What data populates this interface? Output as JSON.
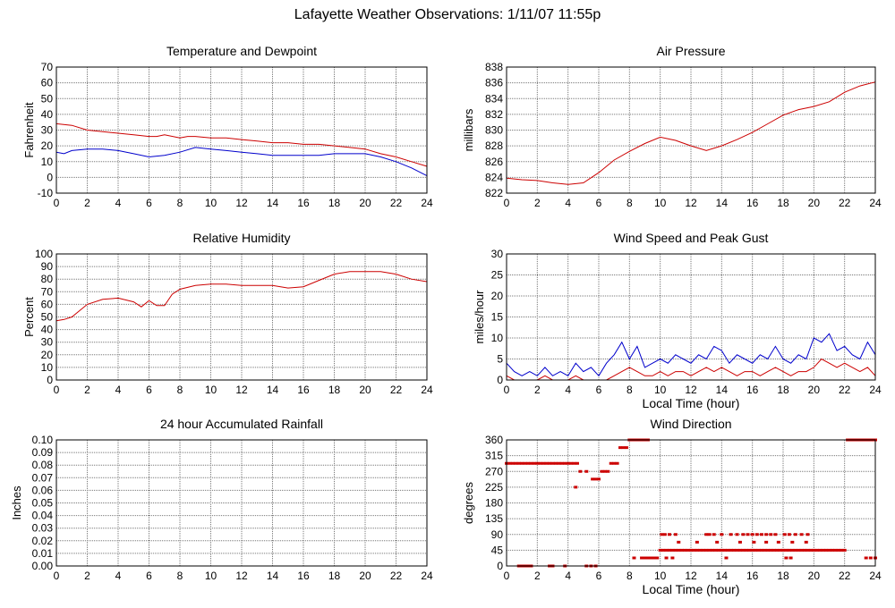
{
  "page": {
    "title": "Lafayette Weather Observations: 1/11/07 11:55p",
    "colors": {
      "red": "#cc0000",
      "blue": "#0000cc",
      "grid": "#777777",
      "frame": "#000000"
    }
  },
  "chart_data": [
    {
      "id": "temperature",
      "type": "line",
      "title": "Temperature and Dewpoint",
      "xlabel": "",
      "ylabel": "Fahrenheit",
      "xlim": [
        0,
        24
      ],
      "ylim": [
        -10,
        70
      ],
      "xticks": [
        "0",
        "2",
        "4",
        "6",
        "8",
        "10",
        "12",
        "14",
        "16",
        "18",
        "20",
        "22",
        "24"
      ],
      "yticks": [
        "-10",
        "0",
        "10",
        "20",
        "30",
        "40",
        "50",
        "60",
        "70"
      ],
      "series": [
        {
          "name": "Temperature",
          "color": "#cc0000",
          "x": [
            0,
            1,
            2,
            3,
            4,
            5,
            6,
            6.5,
            7,
            8,
            8.5,
            9,
            10,
            11,
            12,
            13,
            14,
            15,
            16,
            17,
            18,
            19,
            20,
            21,
            22,
            23,
            24
          ],
          "y": [
            34,
            33,
            30,
            29,
            28,
            27,
            26,
            26,
            27,
            25,
            26,
            26,
            25,
            25,
            24,
            23,
            22,
            22,
            21,
            21,
            20,
            19,
            18,
            15,
            13,
            10,
            7
          ]
        },
        {
          "name": "Dewpoint",
          "color": "#0000cc",
          "x": [
            0,
            0.5,
            1,
            2,
            3,
            4,
            5,
            6,
            7,
            8,
            9,
            10,
            11,
            12,
            13,
            14,
            15,
            16,
            17,
            18,
            19,
            20,
            21,
            22,
            23,
            24
          ],
          "y": [
            16,
            15,
            17,
            18,
            18,
            17,
            15,
            13,
            14,
            16,
            19,
            18,
            17,
            16,
            15,
            14,
            14,
            14,
            14,
            15,
            15,
            15,
            13,
            10,
            6,
            1
          ]
        }
      ]
    },
    {
      "id": "pressure",
      "type": "line",
      "title": "Air Pressure",
      "xlabel": "",
      "ylabel": "millibars",
      "xlim": [
        0,
        24
      ],
      "ylim": [
        822,
        838
      ],
      "xticks": [
        "0",
        "2",
        "4",
        "6",
        "8",
        "10",
        "12",
        "14",
        "16",
        "18",
        "20",
        "22",
        "24"
      ],
      "yticks": [
        "822",
        "824",
        "826",
        "828",
        "830",
        "832",
        "834",
        "836",
        "838"
      ],
      "series": [
        {
          "name": "Pressure",
          "color": "#cc0000",
          "x": [
            0,
            1,
            2,
            3,
            4,
            5,
            6,
            7,
            8,
            9,
            10,
            11,
            12,
            13,
            14,
            15,
            16,
            17,
            18,
            19,
            20,
            21,
            22,
            23,
            24
          ],
          "y": [
            823.9,
            823.7,
            823.6,
            823.3,
            823.1,
            823.3,
            824.6,
            826.2,
            827.3,
            828.3,
            829.1,
            828.7,
            828.0,
            827.4,
            828.0,
            828.8,
            829.7,
            830.8,
            831.9,
            832.6,
            833.0,
            833.6,
            834.8,
            835.6,
            836.1
          ]
        }
      ]
    },
    {
      "id": "humidity",
      "type": "line",
      "title": "Relative Humidity",
      "xlabel": "",
      "ylabel": "Percent",
      "xlim": [
        0,
        24
      ],
      "ylim": [
        0,
        100
      ],
      "xticks": [
        "0",
        "2",
        "4",
        "6",
        "8",
        "10",
        "12",
        "14",
        "16",
        "18",
        "20",
        "22",
        "24"
      ],
      "yticks": [
        "0",
        "10",
        "20",
        "30",
        "40",
        "50",
        "60",
        "70",
        "80",
        "90",
        "100"
      ],
      "series": [
        {
          "name": "Relative Humidity",
          "color": "#cc0000",
          "x": [
            0,
            0.5,
            1,
            2,
            3,
            4,
            5,
            5.5,
            6,
            6.5,
            7,
            7.5,
            8,
            9,
            10,
            11,
            12,
            13,
            14,
            15,
            16,
            17,
            18,
            19,
            20,
            21,
            22,
            23,
            24
          ],
          "y": [
            47,
            48,
            50,
            60,
            64,
            65,
            62,
            58,
            63,
            59,
            59,
            68,
            72,
            75,
            76,
            76,
            75,
            75,
            75,
            73,
            74,
            79,
            84,
            86,
            86,
            86,
            84,
            80,
            78
          ]
        }
      ]
    },
    {
      "id": "wind",
      "type": "line",
      "title": "Wind Speed and Peak Gust",
      "xlabel": "Local Time (hour)",
      "ylabel": "miles/hour",
      "xlim": [
        0,
        24
      ],
      "ylim": [
        0,
        30
      ],
      "xticks": [
        "0",
        "2",
        "4",
        "6",
        "8",
        "10",
        "12",
        "14",
        "16",
        "18",
        "20",
        "22",
        "24"
      ],
      "yticks": [
        "0",
        "5",
        "10",
        "15",
        "20",
        "25",
        "30"
      ],
      "series": [
        {
          "name": "Peak Gust",
          "color": "#0000cc",
          "x": [
            0,
            0.5,
            1,
            1.5,
            2,
            2.5,
            3,
            3.5,
            4,
            4.5,
            5,
            5.5,
            6,
            6.5,
            7,
            7.5,
            8,
            8.5,
            9,
            9.5,
            10,
            10.5,
            11,
            11.5,
            12,
            12.5,
            13,
            13.5,
            14,
            14.5,
            15,
            15.5,
            16,
            16.5,
            17,
            17.5,
            18,
            18.5,
            19,
            19.5,
            20,
            20.5,
            21,
            21.5,
            22,
            22.5,
            23,
            23.5,
            24
          ],
          "y": [
            4,
            2,
            1,
            2,
            1,
            3,
            1,
            2,
            1,
            4,
            2,
            3,
            1,
            4,
            6,
            9,
            5,
            8,
            3,
            4,
            5,
            4,
            6,
            5,
            4,
            6,
            5,
            8,
            7,
            4,
            6,
            5,
            4,
            6,
            5,
            8,
            5,
            4,
            6,
            5,
            10,
            9,
            11,
            7,
            8,
            6,
            5,
            9,
            6
          ]
        },
        {
          "name": "Wind Speed",
          "color": "#cc0000",
          "x": [
            0,
            0.5,
            1,
            1.5,
            2,
            2.5,
            3,
            3.5,
            4,
            4.5,
            5,
            5.5,
            6,
            6.5,
            7,
            7.5,
            8,
            8.5,
            9,
            9.5,
            10,
            10.5,
            11,
            11.5,
            12,
            12.5,
            13,
            13.5,
            14,
            14.5,
            15,
            15.5,
            16,
            16.5,
            17,
            17.5,
            18,
            18.5,
            19,
            19.5,
            20,
            20.5,
            21,
            21.5,
            22,
            22.5,
            23,
            23.5,
            24
          ],
          "y": [
            1,
            0,
            0,
            0,
            0,
            1,
            0,
            0,
            0,
            1,
            0,
            0,
            0,
            0,
            1,
            2,
            3,
            2,
            1,
            1,
            2,
            1,
            2,
            2,
            1,
            2,
            3,
            2,
            3,
            2,
            1,
            2,
            2,
            1,
            2,
            3,
            2,
            1,
            2,
            2,
            3,
            5,
            4,
            3,
            4,
            3,
            2,
            3,
            1
          ]
        }
      ]
    },
    {
      "id": "rainfall",
      "type": "line",
      "title": "24 hour Accumulated Rainfall",
      "xlabel": "",
      "ylabel": "Inches",
      "xlim": [
        0,
        24
      ],
      "ylim": [
        0,
        0.1
      ],
      "xticks": [
        "0",
        "2",
        "4",
        "6",
        "8",
        "10",
        "12",
        "14",
        "16",
        "18",
        "20",
        "22",
        "24"
      ],
      "yticks": [
        "0.00",
        "0.01",
        "0.02",
        "0.03",
        "0.04",
        "0.05",
        "0.06",
        "0.07",
        "0.08",
        "0.09",
        "0.10"
      ],
      "series": [
        {
          "name": "Rainfall",
          "color": "#cc0000",
          "x": [
            0,
            24
          ],
          "y": [
            0,
            0
          ]
        }
      ]
    },
    {
      "id": "direction",
      "type": "scatter",
      "title": "Wind Direction",
      "xlabel": "Local Time (hour)",
      "ylabel": "degrees",
      "xlim": [
        0,
        24
      ],
      "ylim": [
        0,
        360
      ],
      "xticks": [
        "0",
        "2",
        "4",
        "6",
        "8",
        "10",
        "12",
        "14",
        "16",
        "18",
        "20",
        "22",
        "24"
      ],
      "yticks": [
        "0",
        "45",
        "90",
        "135",
        "180",
        "225",
        "270",
        "315",
        "360"
      ],
      "series": [
        {
          "name": "Wind Direction",
          "color": "#cc0000",
          "x": [
            0,
            0.2,
            0.4,
            0.6,
            0.8,
            1,
            1.2,
            1.4,
            1.6,
            1.8,
            2,
            2.2,
            2.4,
            2.6,
            2.8,
            3,
            3.2,
            3.4,
            3.6,
            3.8,
            4,
            4.2,
            4.4,
            4.6,
            0.8,
            1,
            1.2,
            1.4,
            1.6,
            2.8,
            3,
            3.8,
            5.2,
            5.5,
            5.8,
            4.5,
            4.8,
            5.2,
            5.6,
            5.8,
            6,
            6.2,
            6.4,
            6.6,
            6.8,
            7,
            7.2,
            7.4,
            7.6,
            7.8,
            8,
            8.2,
            8.4,
            8.6,
            8.8,
            9,
            9.2,
            8.3,
            8.8,
            9,
            9.2,
            9.4,
            9.6,
            9.8,
            10,
            10.2,
            10.4,
            10.6,
            10.8,
            11,
            11.2,
            11.4,
            11.6,
            11.8,
            12,
            12.2,
            12.4,
            12.6,
            12.8,
            13,
            13.2,
            13.4,
            13.6,
            13.8,
            14,
            14.2,
            14.4,
            14.6,
            14.8,
            15,
            15.2,
            15.4,
            15.6,
            15.8,
            16,
            16.2,
            16.4,
            16.6,
            16.8,
            17,
            17.2,
            17.4,
            17.6,
            17.8,
            18,
            18.2,
            18.4,
            18.6,
            18.8,
            19,
            19.2,
            19.4,
            19.6,
            19.8,
            20,
            20.2,
            20.4,
            20.6,
            20.8,
            21,
            21.2,
            21.4,
            21.6,
            21.8,
            22,
            10.1,
            10.3,
            10.6,
            11,
            13,
            13.2,
            13.5,
            14,
            14.6,
            15,
            15.4,
            15.7,
            16,
            16.3,
            16.6,
            16.9,
            17.2,
            17.5,
            18.1,
            18.4,
            18.8,
            19.2,
            19.6,
            11.2,
            12.4,
            13.7,
            15.2,
            16.1,
            16.9,
            17.7,
            18.6,
            19.5,
            10.4,
            10.8,
            14.3,
            18.2,
            18.5,
            22.2,
            22.4,
            22.6,
            22.8,
            23,
            23.2,
            23.4,
            23.6,
            23.8,
            24,
            23.4,
            23.7,
            24
          ],
          "y": [
            293,
            293,
            293,
            293,
            293,
            293,
            293,
            293,
            293,
            293,
            293,
            293,
            293,
            293,
            293,
            293,
            293,
            293,
            293,
            293,
            293,
            293,
            293,
            293,
            0,
            0,
            0,
            0,
            0,
            0,
            0,
            0,
            0,
            0,
            0,
            225,
            270,
            270,
            248,
            248,
            248,
            270,
            270,
            270,
            293,
            293,
            293,
            338,
            338,
            338,
            360,
            360,
            360,
            360,
            360,
            360,
            360,
            23,
            23,
            23,
            23,
            23,
            23,
            23,
            45,
            45,
            45,
            45,
            45,
            45,
            45,
            45,
            45,
            45,
            45,
            45,
            45,
            45,
            45,
            45,
            45,
            45,
            45,
            45,
            45,
            45,
            45,
            45,
            45,
            45,
            45,
            45,
            45,
            45,
            45,
            45,
            45,
            45,
            45,
            45,
            45,
            45,
            45,
            45,
            45,
            45,
            45,
            45,
            45,
            45,
            45,
            45,
            45,
            45,
            45,
            45,
            45,
            45,
            45,
            45,
            45,
            45,
            45,
            45,
            45,
            90,
            90,
            90,
            90,
            90,
            90,
            90,
            90,
            90,
            90,
            90,
            90,
            90,
            90,
            90,
            90,
            90,
            90,
            90,
            90,
            90,
            90,
            90,
            68,
            68,
            68,
            68,
            68,
            68,
            68,
            68,
            68,
            23,
            23,
            23,
            23,
            23,
            360,
            360,
            360,
            360,
            360,
            360,
            360,
            360,
            360,
            360,
            23,
            23,
            23
          ]
        }
      ]
    }
  ]
}
